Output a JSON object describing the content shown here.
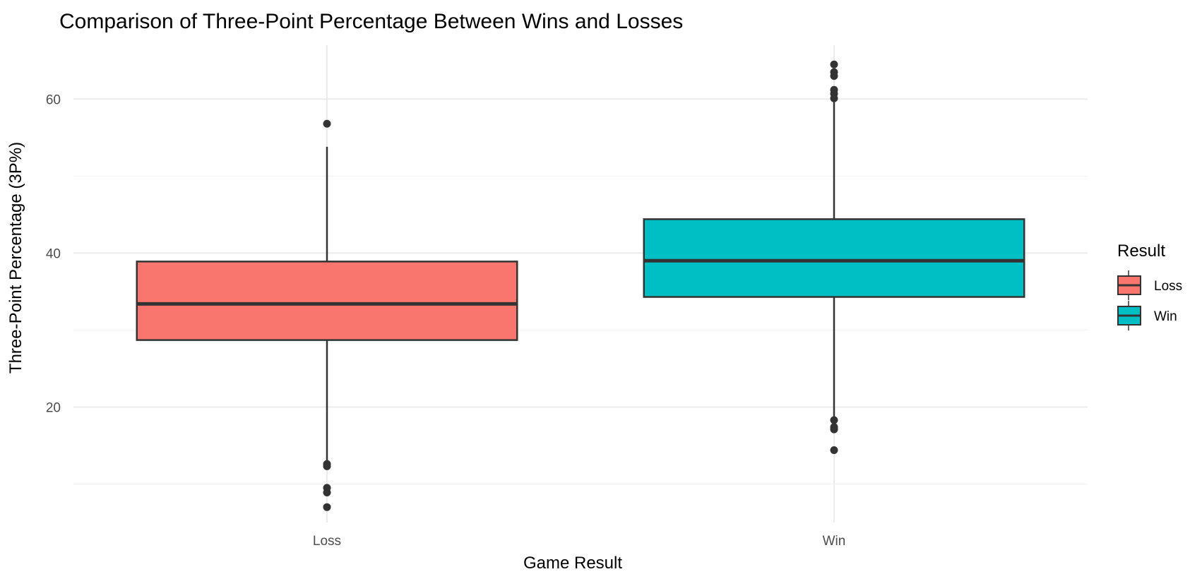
{
  "chart_data": {
    "type": "boxplot",
    "title": "Comparison of Three-Point Percentage Between Wins and Losses",
    "xlabel": "Game Result",
    "ylabel": "Three-Point Percentage (3P%)",
    "ylim": [
      5,
      67
    ],
    "y_ticks": [
      20,
      40,
      60
    ],
    "y_minor_ticks": [
      10,
      30,
      50
    ],
    "grid": true,
    "categories": [
      "Loss",
      "Win"
    ],
    "boxes": [
      {
        "category": "Loss",
        "color": "#F8766D",
        "q1": 28.7,
        "median": 33.4,
        "q3": 38.9,
        "whisker_low": 13.0,
        "whisker_high": 53.8,
        "outliers": [
          56.8,
          12.6,
          12.3,
          9.5,
          8.9,
          7.0
        ]
      },
      {
        "category": "Win",
        "color": "#00BFC4",
        "q1": 34.3,
        "median": 39.0,
        "q3": 44.4,
        "whisker_low": 18.6,
        "whisker_high": 59.8,
        "outliers": [
          64.5,
          63.5,
          63.0,
          61.2,
          60.7,
          60.1,
          18.3,
          17.4,
          17.1,
          14.4
        ]
      }
    ],
    "legend": {
      "title": "Result",
      "position": "right",
      "items": [
        {
          "label": "Loss",
          "color": "#F8766D"
        },
        {
          "label": "Win",
          "color": "#00BFC4"
        }
      ]
    }
  }
}
